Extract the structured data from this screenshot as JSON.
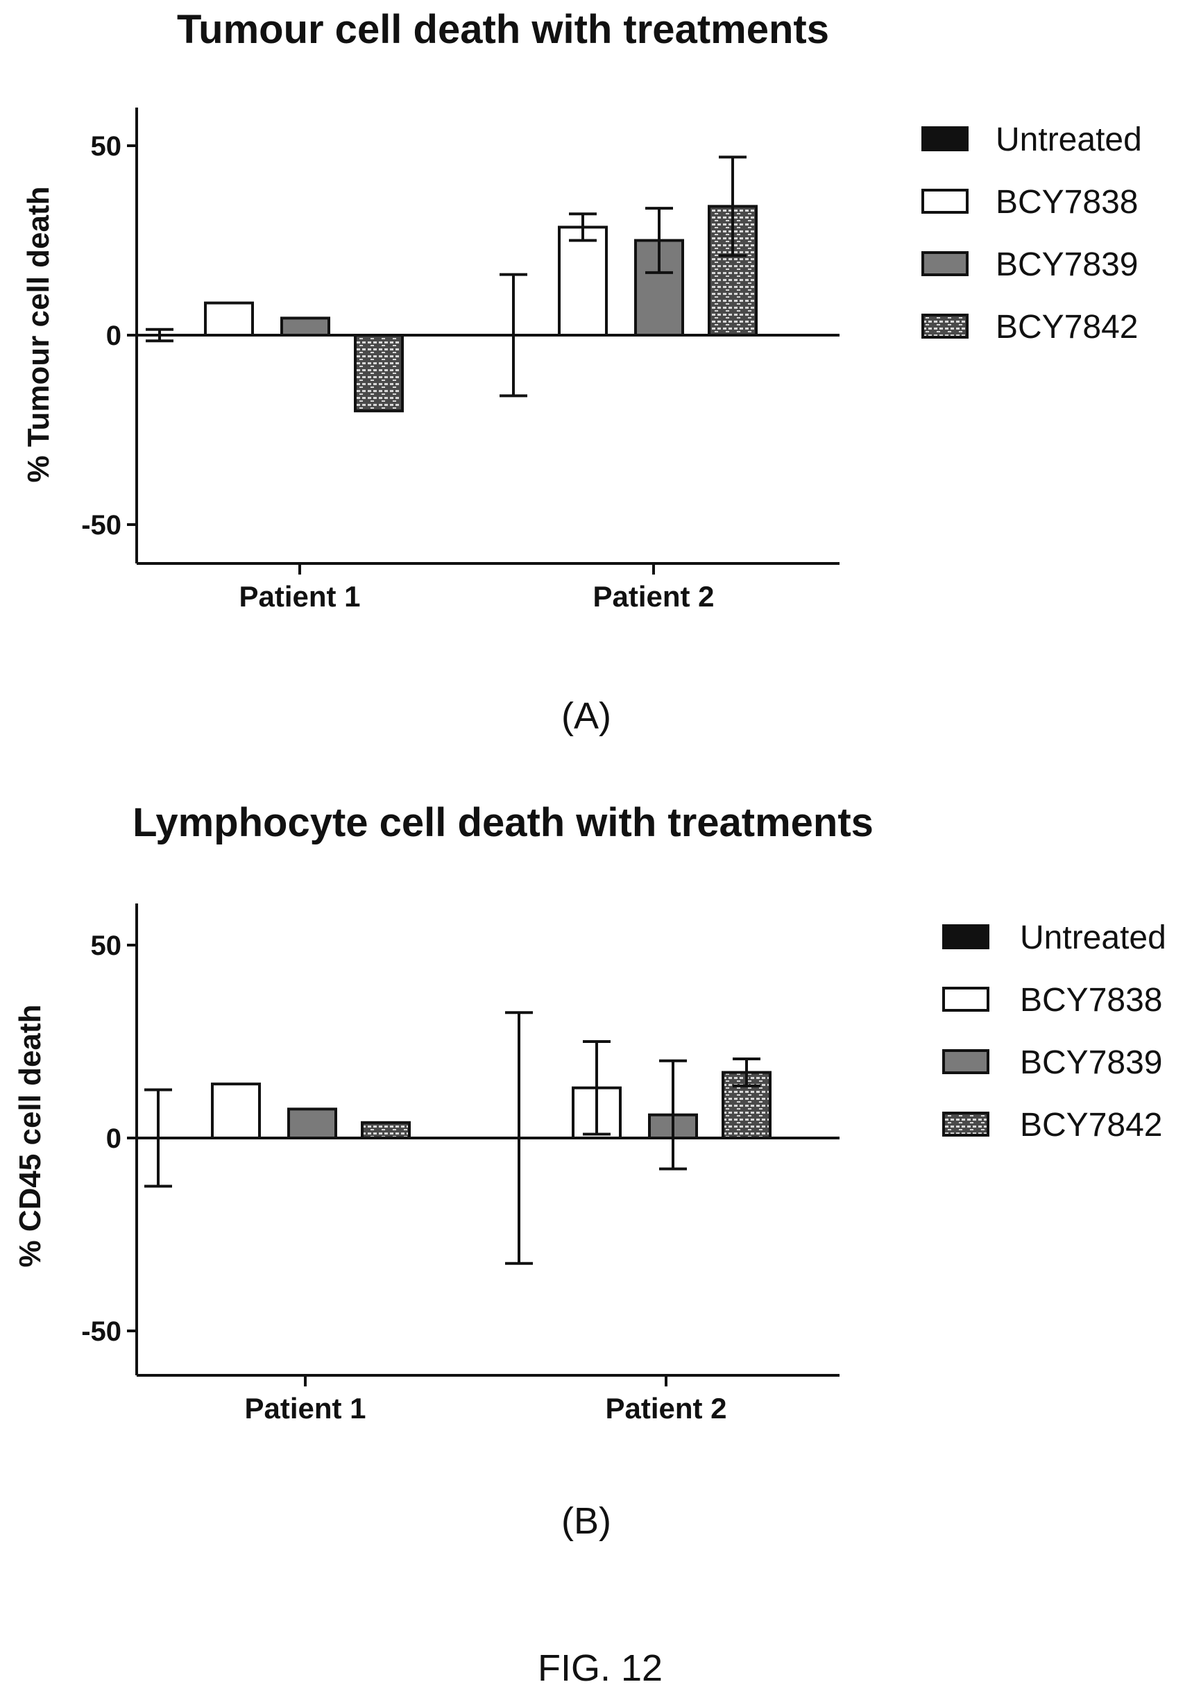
{
  "figure_label": "FIG. 12",
  "colors": {
    "untreated": "#111111",
    "bcy7838": "#ffffff",
    "bcy7839": "#7a7a7a",
    "bcy7842": "#555555",
    "axis": "#111111"
  },
  "chart_data": [
    {
      "type": "bar",
      "panel_label": "(A)",
      "title": "Tumour cell death with treatments",
      "ylabel": "% Tumour cell death",
      "xlabel": "",
      "ylim": [
        -60,
        60
      ],
      "yticks": [
        50,
        0,
        -50
      ],
      "ytick_labels": [
        "50",
        "0",
        "-50"
      ],
      "categories": [
        "Patient 1",
        "Patient 2"
      ],
      "legend_position": "right",
      "grid": false,
      "series": [
        {
          "name": "Untreated",
          "key": "untreated",
          "values": [
            0,
            0
          ],
          "errors": [
            1.5,
            16
          ]
        },
        {
          "name": "BCY7838",
          "key": "bcy7838",
          "values": [
            8.5,
            28.5
          ],
          "errors": [
            0,
            3.5
          ]
        },
        {
          "name": "BCY7839",
          "key": "bcy7839",
          "values": [
            4.5,
            25
          ],
          "errors": [
            0,
            8.5
          ]
        },
        {
          "name": "BCY7842",
          "key": "bcy7842",
          "values": [
            -20,
            34
          ],
          "errors": [
            0,
            13
          ]
        }
      ]
    },
    {
      "type": "bar",
      "panel_label": "(B)",
      "title": "Lymphocyte cell death with treatments",
      "ylabel": "% CD45 cell death",
      "xlabel": "",
      "ylim": [
        -60,
        60
      ],
      "yticks": [
        50,
        0,
        -50
      ],
      "ytick_labels": [
        "50",
        "0",
        "-50"
      ],
      "categories": [
        "Patient 1",
        "Patient 2"
      ],
      "legend_position": "right",
      "grid": false,
      "series": [
        {
          "name": "Untreated",
          "key": "untreated",
          "values": [
            0,
            0
          ],
          "errors": [
            12.5,
            32.5
          ]
        },
        {
          "name": "BCY7838",
          "key": "bcy7838",
          "values": [
            14,
            13
          ],
          "errors": [
            0,
            12
          ]
        },
        {
          "name": "BCY7839",
          "key": "bcy7839",
          "values": [
            7.5,
            6
          ],
          "errors": [
            0,
            14
          ]
        },
        {
          "name": "BCY7842",
          "key": "bcy7842",
          "values": [
            4,
            17
          ],
          "errors": [
            0,
            3.5
          ]
        }
      ]
    }
  ]
}
